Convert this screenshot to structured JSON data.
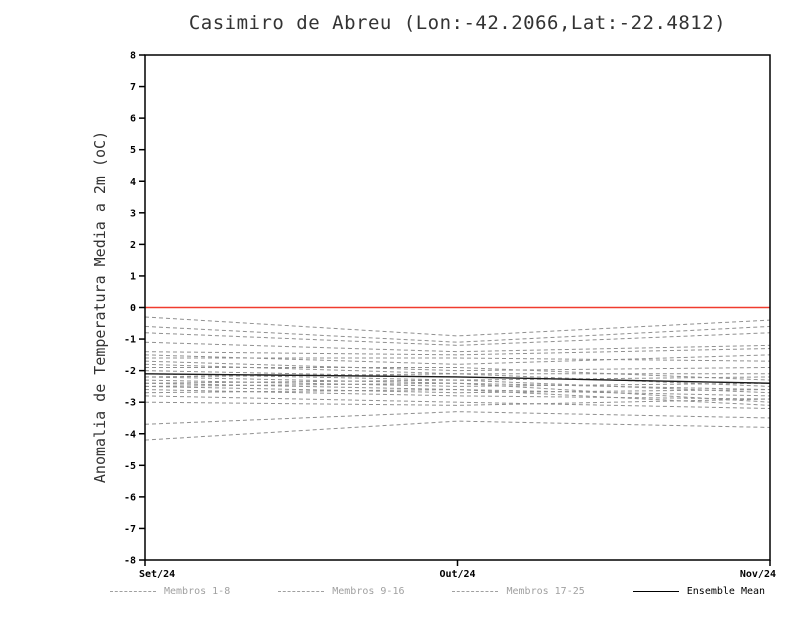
{
  "chart_data": {
    "type": "line",
    "title": "Casimiro de Abreu (Lon:-42.2066,Lat:-22.4812)",
    "ylabel": "Anomalia de Temperatura Media a 2m (oC)",
    "x": [
      "Set/24",
      "Out/24",
      "Nov/24"
    ],
    "ylim": [
      -8,
      8
    ],
    "y_tick_step": 1,
    "grid": false,
    "zero_line_color": "#f03b2e",
    "member_color": "#909090",
    "mean_color": "#1a1a1a",
    "members": [
      [
        -0.3,
        -0.9,
        -0.4
      ],
      [
        -0.6,
        -1.1,
        -0.6
      ],
      [
        -0.8,
        -1.2,
        -0.8
      ],
      [
        -1.1,
        -1.4,
        -1.2
      ],
      [
        -1.4,
        -1.5,
        -1.3
      ],
      [
        -1.5,
        -1.8,
        -1.5
      ],
      [
        -1.6,
        -1.6,
        -1.7
      ],
      [
        -1.7,
        -2.0,
        -1.9
      ],
      [
        -1.8,
        -2.1,
        -2.1
      ],
      [
        -1.9,
        -1.9,
        -2.3
      ],
      [
        -2.0,
        -2.2,
        -2.4
      ],
      [
        -2.1,
        -2.3,
        -2.2
      ],
      [
        -2.2,
        -2.1,
        -2.5
      ],
      [
        -2.2,
        -2.4,
        -2.6
      ],
      [
        -2.3,
        -2.5,
        -2.4
      ],
      [
        -2.4,
        -2.3,
        -2.7
      ],
      [
        -2.4,
        -2.6,
        -2.8
      ],
      [
        -2.5,
        -2.7,
        -2.6
      ],
      [
        -2.5,
        -2.4,
        -3.0
      ],
      [
        -2.6,
        -2.8,
        -2.9
      ],
      [
        -2.7,
        -2.6,
        -3.1
      ],
      [
        -2.8,
        -3.0,
        -3.2
      ],
      [
        -3.0,
        -3.1,
        -2.9
      ],
      [
        -3.7,
        -3.3,
        -3.5
      ],
      [
        -4.2,
        -3.6,
        -3.8
      ]
    ],
    "ensemble_mean": [
      -2.1,
      -2.2,
      -2.4
    ],
    "legend": [
      {
        "label": "Membros 1-8",
        "style": "dashed",
        "color": "#a0a0a0"
      },
      {
        "label": "Membros 9-16",
        "style": "dashed",
        "color": "#a0a0a0"
      },
      {
        "label": "Membros 17-25",
        "style": "dashed",
        "color": "#a0a0a0"
      },
      {
        "label": "Ensemble Mean",
        "style": "solid",
        "color": "#000000"
      }
    ]
  }
}
